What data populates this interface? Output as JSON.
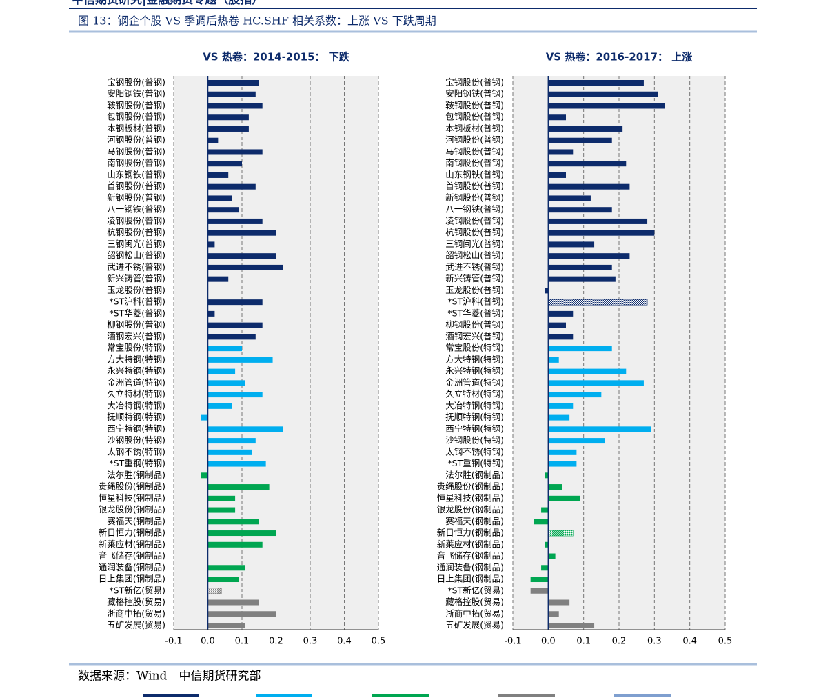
{
  "header": "中信期货研究|金融期货专题（股指）",
  "figure_title": "图 13：钢企个股 VS 季调后热卷 HC.SHF 相关系数：上涨 VS 下跌周期",
  "source": "数据来源：Wind　中信期货研究部",
  "chart_data": [
    {
      "type": "hbar",
      "title": "VS 热卷：2014-2015： 下跌",
      "categories": [
        "宝钢股份(普钢)",
        "安阳钢铁(普钢)",
        "鞍钢股份(普钢)",
        "包钢股份(普钢)",
        "本钢板材(普钢)",
        "河钢股份(普钢)",
        "马钢股份(普钢)",
        "南钢股份(普钢)",
        "山东钢铁(普钢)",
        "首钢股份(普钢)",
        "新钢股份(普钢)",
        "八一钢铁(普钢)",
        "凌钢股份(普钢)",
        "杭钢股份(普钢)",
        "三钢闽光(普钢)",
        "韶钢松山(普钢)",
        "武进不锈(普钢)",
        "新兴铸管(普钢)",
        "玉龙股份(普钢)",
        "*ST沪科(普钢)",
        "*ST华菱(普钢)",
        "柳钢股份(普钢)",
        "酒钢宏兴(普钢)",
        "常宝股份(特钢)",
        "方大特钢(特钢)",
        "永兴特钢(特钢)",
        "金洲管道(特钢)",
        "久立特材(特钢)",
        "大冶特钢(特钢)",
        "抚顺特钢(特钢)",
        "西宁特钢(特钢)",
        "沙钢股份(特钢)",
        "太钢不锈(特钢)",
        "*ST重钢(特钢)",
        "法尔胜(钢制品)",
        "贵绳股份(钢制品)",
        "恒星科技(钢制品)",
        "银龙股份(钢制品)",
        "赛福天(钢制品)",
        "新日恒力(钢制品)",
        "新莱应材(钢制品)",
        "音飞储存(钢制品)",
        "通润装备(钢制品)",
        "日上集团(钢制品)",
        "*ST新亿(贸易)",
        "藏格控股(贸易)",
        "浙商中拓(贸易)",
        "五矿发展(贸易)"
      ],
      "values": [
        0.15,
        0.14,
        0.16,
        0.12,
        0.12,
        0.03,
        0.16,
        0.1,
        0.06,
        0.14,
        0.07,
        0.09,
        0.16,
        0.2,
        0.02,
        0.2,
        0.22,
        0.06,
        0.0,
        0.16,
        0.02,
        0.16,
        0.14,
        0.1,
        0.19,
        0.08,
        0.11,
        0.16,
        0.07,
        -0.02,
        0.22,
        0.14,
        0.13,
        0.17,
        -0.02,
        0.18,
        0.08,
        0.08,
        0.15,
        0.2,
        0.16,
        0.0,
        0.11,
        0.09,
        0.04,
        0.15,
        0.2,
        0.11
      ],
      "colors": [
        "#0d2b6b",
        "#0d2b6b",
        "#0d2b6b",
        "#0d2b6b",
        "#0d2b6b",
        "#0d2b6b",
        "#0d2b6b",
        "#0d2b6b",
        "#0d2b6b",
        "#0d2b6b",
        "#0d2b6b",
        "#0d2b6b",
        "#0d2b6b",
        "#0d2b6b",
        "#0d2b6b",
        "#0d2b6b",
        "#0d2b6b",
        "#0d2b6b",
        "#0d2b6b",
        "#0d2b6b",
        "#0d2b6b",
        "#0d2b6b",
        "#0d2b6b",
        "#00aeef",
        "#00aeef",
        "#00aeef",
        "#00aeef",
        "#00aeef",
        "#00aeef",
        "#00aeef",
        "#00aeef",
        "#00aeef",
        "#00aeef",
        "#00aeef",
        "#00a651",
        "#00a651",
        "#00a651",
        "#00a651",
        "#00a651",
        "#00a651",
        "#00a651",
        "#00a651",
        "#00a651",
        "#00a651",
        "#808080",
        "#808080",
        "#808080",
        "#808080"
      ],
      "hatched": [
        44
      ],
      "xlim": [
        -0.1,
        0.5
      ],
      "xticks": [
        -0.1,
        {
          "value": 0,
          "label": "0.0"
        },
        0.1,
        0.2,
        0.3,
        0.4,
        0.5
      ],
      "grid": true
    },
    {
      "type": "hbar",
      "title": "VS 热卷：2016-2017： 上涨",
      "categories": [
        "宝钢股份(普钢)",
        "安阳钢铁(普钢)",
        "鞍钢股份(普钢)",
        "包钢股份(普钢)",
        "本钢板材(普钢)",
        "河钢股份(普钢)",
        "马钢股份(普钢)",
        "南钢股份(普钢)",
        "山东钢铁(普钢)",
        "首钢股份(普钢)",
        "新钢股份(普钢)",
        "八一钢铁(普钢)",
        "凌钢股份(普钢)",
        "杭钢股份(普钢)",
        "三钢闽光(普钢)",
        "韶钢松山(普钢)",
        "武进不锈(普钢)",
        "新兴铸管(普钢)",
        "玉龙股份(普钢)",
        "*ST沪科(普钢)",
        "*ST华菱(普钢)",
        "柳钢股份(普钢)",
        "酒钢宏兴(普钢)",
        "常宝股份(特钢)",
        "方大特钢(特钢)",
        "永兴特钢(特钢)",
        "金洲管道(特钢)",
        "久立特材(特钢)",
        "大冶特钢(特钢)",
        "抚顺特钢(特钢)",
        "西宁特钢(特钢)",
        "沙钢股份(特钢)",
        "太钢不锈(特钢)",
        "*ST重钢(特钢)",
        "法尔胜(钢制品)",
        "贵绳股份(钢制品)",
        "恒星科技(钢制品)",
        "银龙股份(钢制品)",
        "赛福天(钢制品)",
        "新日恒力(钢制品)",
        "新莱应材(钢制品)",
        "音飞储存(钢制品)",
        "通润装备(钢制品)",
        "日上集团(钢制品)",
        "*ST新亿(贸易)",
        "藏格控股(贸易)",
        "浙商中拓(贸易)",
        "五矿发展(贸易)"
      ],
      "values": [
        0.27,
        0.31,
        0.33,
        0.05,
        0.21,
        0.18,
        0.07,
        0.22,
        0.05,
        0.23,
        0.12,
        0.18,
        0.28,
        0.3,
        0.13,
        0.23,
        0.18,
        0.19,
        -0.01,
        0.28,
        0.07,
        0.05,
        0.07,
        0.18,
        0.03,
        0.22,
        0.27,
        0.15,
        0.07,
        0.06,
        0.29,
        0.16,
        0.08,
        0.08,
        -0.01,
        0.04,
        0.09,
        -0.02,
        -0.04,
        0.07,
        -0.01,
        0.02,
        -0.02,
        -0.05,
        -0.05,
        0.06,
        0.03,
        0.13
      ],
      "colors": [
        "#0d2b6b",
        "#0d2b6b",
        "#0d2b6b",
        "#0d2b6b",
        "#0d2b6b",
        "#0d2b6b",
        "#0d2b6b",
        "#0d2b6b",
        "#0d2b6b",
        "#0d2b6b",
        "#0d2b6b",
        "#0d2b6b",
        "#0d2b6b",
        "#0d2b6b",
        "#0d2b6b",
        "#0d2b6b",
        "#0d2b6b",
        "#0d2b6b",
        "#0d2b6b",
        "#0d2b6b",
        "#0d2b6b",
        "#0d2b6b",
        "#0d2b6b",
        "#00aeef",
        "#00aeef",
        "#00aeef",
        "#00aeef",
        "#00aeef",
        "#00aeef",
        "#00aeef",
        "#00aeef",
        "#00aeef",
        "#00aeef",
        "#00aeef",
        "#00a651",
        "#00a651",
        "#00a651",
        "#00a651",
        "#00a651",
        "#00a651",
        "#00a651",
        "#00a651",
        "#00a651",
        "#00a651",
        "#808080",
        "#808080",
        "#808080",
        "#808080"
      ],
      "hatched": [
        19,
        39
      ],
      "xlim": [
        -0.1,
        0.5
      ],
      "xticks": [
        -0.1,
        {
          "value": 0,
          "label": "0.0"
        },
        0.1,
        0.2,
        0.3,
        0.4,
        0.5
      ],
      "grid": true
    }
  ]
}
